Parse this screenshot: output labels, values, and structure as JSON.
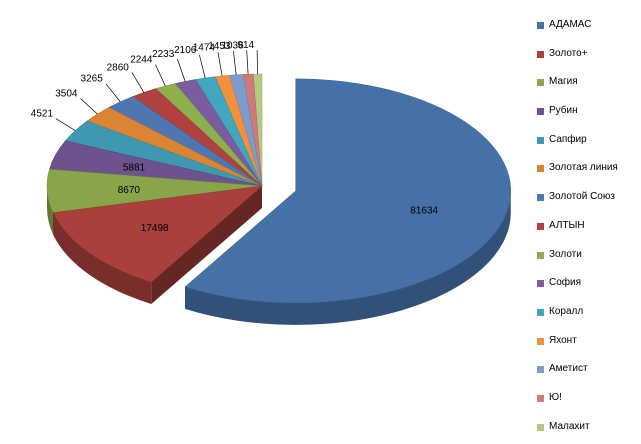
{
  "chart_data": {
    "type": "pie",
    "title": "",
    "legend_position": "right",
    "exploded": true,
    "three_d": true,
    "slices": [
      {
        "label": "АДАМАС",
        "value": 81634,
        "color": "#4571A6"
      },
      {
        "label": "Золото+",
        "value": 17498,
        "color": "#A9403C"
      },
      {
        "label": "Магия",
        "value": 8670,
        "color": "#88A54A"
      },
      {
        "label": "Рубин",
        "value": 5881,
        "color": "#6D528E"
      },
      {
        "label": "Сапфир",
        "value": 4521,
        "color": "#3E99B0"
      },
      {
        "label": "Золотая линия",
        "value": 3504,
        "color": "#DB8433"
      },
      {
        "label": "Золотой Союз",
        "value": 3265,
        "color": "#4E76B1"
      },
      {
        "label": "АЛТЫН",
        "value": 2860,
        "color": "#B0413F"
      },
      {
        "label": "Золоти",
        "value": 2244,
        "color": "#8EAF4D"
      },
      {
        "label": "София",
        "value": 2233,
        "color": "#7C5C9F"
      },
      {
        "label": "Коралл",
        "value": 2106,
        "color": "#42A6BF"
      },
      {
        "label": "Яхонт",
        "value": 1474,
        "color": "#F1913D"
      },
      {
        "label": "Аметист",
        "value": 1453,
        "color": "#7D9BCB"
      },
      {
        "label": "Ю!",
        "value": 1036,
        "color": "#CF7A78"
      },
      {
        "label": "Малахит",
        "value": 914,
        "color": "#B4CA84"
      }
    ]
  }
}
